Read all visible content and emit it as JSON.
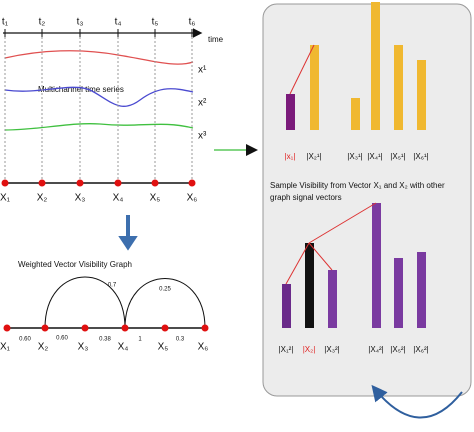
{
  "time_series": {
    "title": "Multichannel time series",
    "time_labels": [
      "t₁",
      "t₂",
      "t₃",
      "t₄",
      "t₅",
      "t₆"
    ],
    "axis_label": "time",
    "channels": [
      "x¹",
      "x²",
      "x³"
    ],
    "nodes": [
      "X₁",
      "X₂",
      "X₃",
      "X₄",
      "X₅",
      "X₆"
    ]
  },
  "graph": {
    "title": "Weighted Vector Visibility Graph",
    "nodes": [
      "X₁",
      "X₂",
      "X₃",
      "X₄",
      "X₅",
      "X₆"
    ],
    "edge_weights": [
      "0.7",
      "0.25",
      "0.60",
      "0.60",
      "0.38",
      "1",
      "0.3"
    ]
  },
  "panel": {
    "top_labels": [
      "|x₁|",
      "|X₂¹|",
      "|X₃¹|",
      "|X₄¹|",
      "|X₅¹|",
      "|X₆¹|"
    ],
    "caption_lines": [
      "Sample Visibility from Vector X₁ and X₂ with other",
      "graph signal vectors"
    ],
    "bottom_labels": [
      "|X₁²|",
      "|X₂|",
      "|X₃²|",
      "|X₄²|",
      "|X₅²|",
      "|X₆²|"
    ]
  }
}
